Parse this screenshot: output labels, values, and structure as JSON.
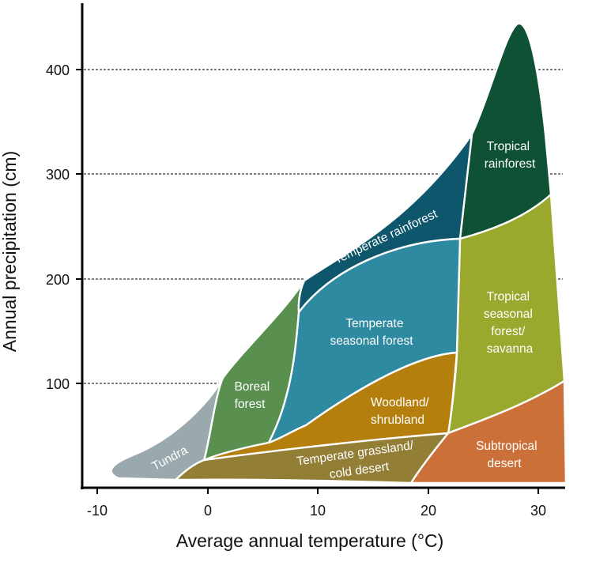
{
  "chart_data": {
    "type": "area",
    "title": "",
    "xlabel": "Average annual temperature (°C)",
    "ylabel": "Annual precipitation (cm)",
    "xlim": [
      -12,
      32.5
    ],
    "ylim": [
      0,
      450
    ],
    "x_ticks": [
      "-10",
      "0",
      "10",
      "20",
      "30"
    ],
    "y_ticks": [
      "100",
      "200",
      "300",
      "400"
    ],
    "gridlines_y": [
      100,
      200,
      300,
      400
    ],
    "biomes": [
      {
        "name": "Tropical rainforest",
        "label_lines": [
          "Tropical",
          "rainforest"
        ],
        "color": "#0f5134",
        "temp_range_c": [
          22,
          31
        ],
        "precip_range_cm": [
          240,
          443
        ]
      },
      {
        "name": "Temperate rainforest",
        "label_lines": [
          "Temperate rainforest"
        ],
        "color": "#0e566b",
        "temp_range_c": [
          8,
          24
        ],
        "precip_range_cm": [
          175,
          333
        ]
      },
      {
        "name": "Tropical seasonal forest/savanna",
        "label_lines": [
          "Tropical",
          "seasonal",
          "forest/",
          "savanna"
        ],
        "color": "#9aa92d",
        "temp_range_c": [
          22,
          32
        ],
        "precip_range_cm": [
          55,
          278
        ]
      },
      {
        "name": "Temperate seasonal forest",
        "label_lines": [
          "Temperate",
          "seasonal forest"
        ],
        "color": "#2e8aa1",
        "temp_range_c": [
          6,
          23
        ],
        "precip_range_cm": [
          45,
          237
        ]
      },
      {
        "name": "Boreal forest",
        "label_lines": [
          "Boreal",
          "forest"
        ],
        "color": "#5a904f",
        "temp_range_c": [
          0,
          9
        ],
        "precip_range_cm": [
          25,
          198
        ]
      },
      {
        "name": "Woodland/shrubland",
        "label_lines": [
          "Woodland/",
          "shrubland"
        ],
        "color": "#b57f0d",
        "temp_range_c": [
          0,
          23
        ],
        "precip_range_cm": [
          18,
          128
        ]
      },
      {
        "name": "Temperate grassland/cold desert",
        "label_lines": [
          "Temperate grassland/",
          "cold desert"
        ],
        "color": "#927e35",
        "temp_range_c": [
          -3,
          22
        ],
        "precip_range_cm": [
          5,
          55
        ]
      },
      {
        "name": "Subtropical desert",
        "label_lines": [
          "Subtropical",
          "desert"
        ],
        "color": "#cc703a",
        "temp_range_c": [
          18,
          32
        ],
        "precip_range_cm": [
          5,
          100
        ]
      },
      {
        "name": "Tundra",
        "label_lines": [
          "Tundra"
        ],
        "color": "#99a9ad",
        "temp_range_c": [
          -9,
          1
        ],
        "precip_range_cm": [
          8,
          100
        ]
      }
    ]
  }
}
